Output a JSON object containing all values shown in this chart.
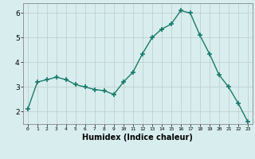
{
  "x": [
    0,
    1,
    2,
    3,
    4,
    5,
    6,
    7,
    8,
    9,
    10,
    11,
    12,
    13,
    14,
    15,
    16,
    17,
    18,
    19,
    20,
    21,
    22,
    23
  ],
  "y": [
    2.1,
    3.2,
    3.3,
    3.4,
    3.3,
    3.1,
    3.0,
    2.9,
    2.85,
    2.7,
    3.2,
    3.6,
    4.35,
    5.0,
    5.35,
    5.55,
    6.1,
    6.0,
    5.1,
    4.35,
    3.5,
    3.0,
    2.35,
    1.6
  ],
  "xlabel": "Humidex (Indice chaleur)",
  "xlim": [
    -0.5,
    23.5
  ],
  "ylim": [
    1.5,
    6.4
  ],
  "yticks": [
    2,
    3,
    4,
    5,
    6
  ],
  "xtick_labels": [
    "0",
    "1",
    "2",
    "3",
    "4",
    "5",
    "6",
    "7",
    "8",
    "9",
    "10",
    "11",
    "12",
    "13",
    "14",
    "15",
    "16",
    "17",
    "18",
    "19",
    "20",
    "21",
    "22",
    "23"
  ],
  "line_color": "#1a7a6a",
  "bg_color": "#d8eeee",
  "grid_color": "#c0d0d0"
}
